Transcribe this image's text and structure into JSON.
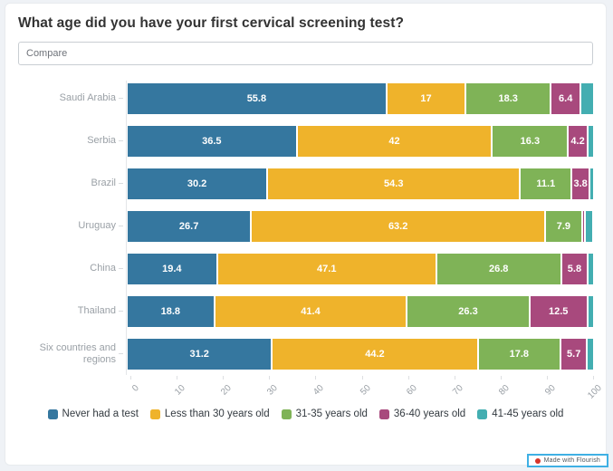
{
  "title": "What age did you have your first cervical screening test?",
  "compare": {
    "placeholder": "Compare"
  },
  "chart_data": {
    "type": "bar",
    "variant": "horizontal-stacked",
    "title": "What age did you have your first cervical screening test?",
    "categories": [
      "Saudi Arabia",
      "Serbia",
      "Brazil",
      "Uruguay",
      "China",
      "Thailand",
      "Six countries and regions"
    ],
    "series": [
      {
        "name": "Never had a test",
        "color": "#35779f",
        "values": [
          55.8,
          36.5,
          30.2,
          26.7,
          19.4,
          18.8,
          31.2
        ]
      },
      {
        "name": "Less than 30 years old",
        "color": "#efb32b",
        "values": [
          17,
          42,
          54.3,
          63.2,
          47.1,
          41.4,
          44.2
        ]
      },
      {
        "name": "31-35 years old",
        "color": "#7fb357",
        "values": [
          18.3,
          16.3,
          11.1,
          7.9,
          26.8,
          26.3,
          17.8
        ]
      },
      {
        "name": "36-40 years old",
        "color": "#a8497d",
        "values": [
          6.4,
          4.2,
          3.8,
          0.6,
          5.8,
          12.5,
          5.7
        ]
      },
      {
        "name": "41-45 years old",
        "color": "#43aeb1",
        "values": [
          2.5,
          1.0,
          0.6,
          1.5,
          0.9,
          1.0,
          1.1
        ]
      }
    ],
    "x_ticks": [
      0,
      10,
      20,
      30,
      40,
      50,
      60,
      70,
      80,
      90,
      100
    ],
    "xlim": [
      0,
      100
    ],
    "grid": false,
    "legend_position": "bottom",
    "bar_label_min_value": 3,
    "label_color": "#ffffff",
    "axis_label_color": "#9aa0a6"
  },
  "badge": {
    "label": "Made with Flourish"
  }
}
